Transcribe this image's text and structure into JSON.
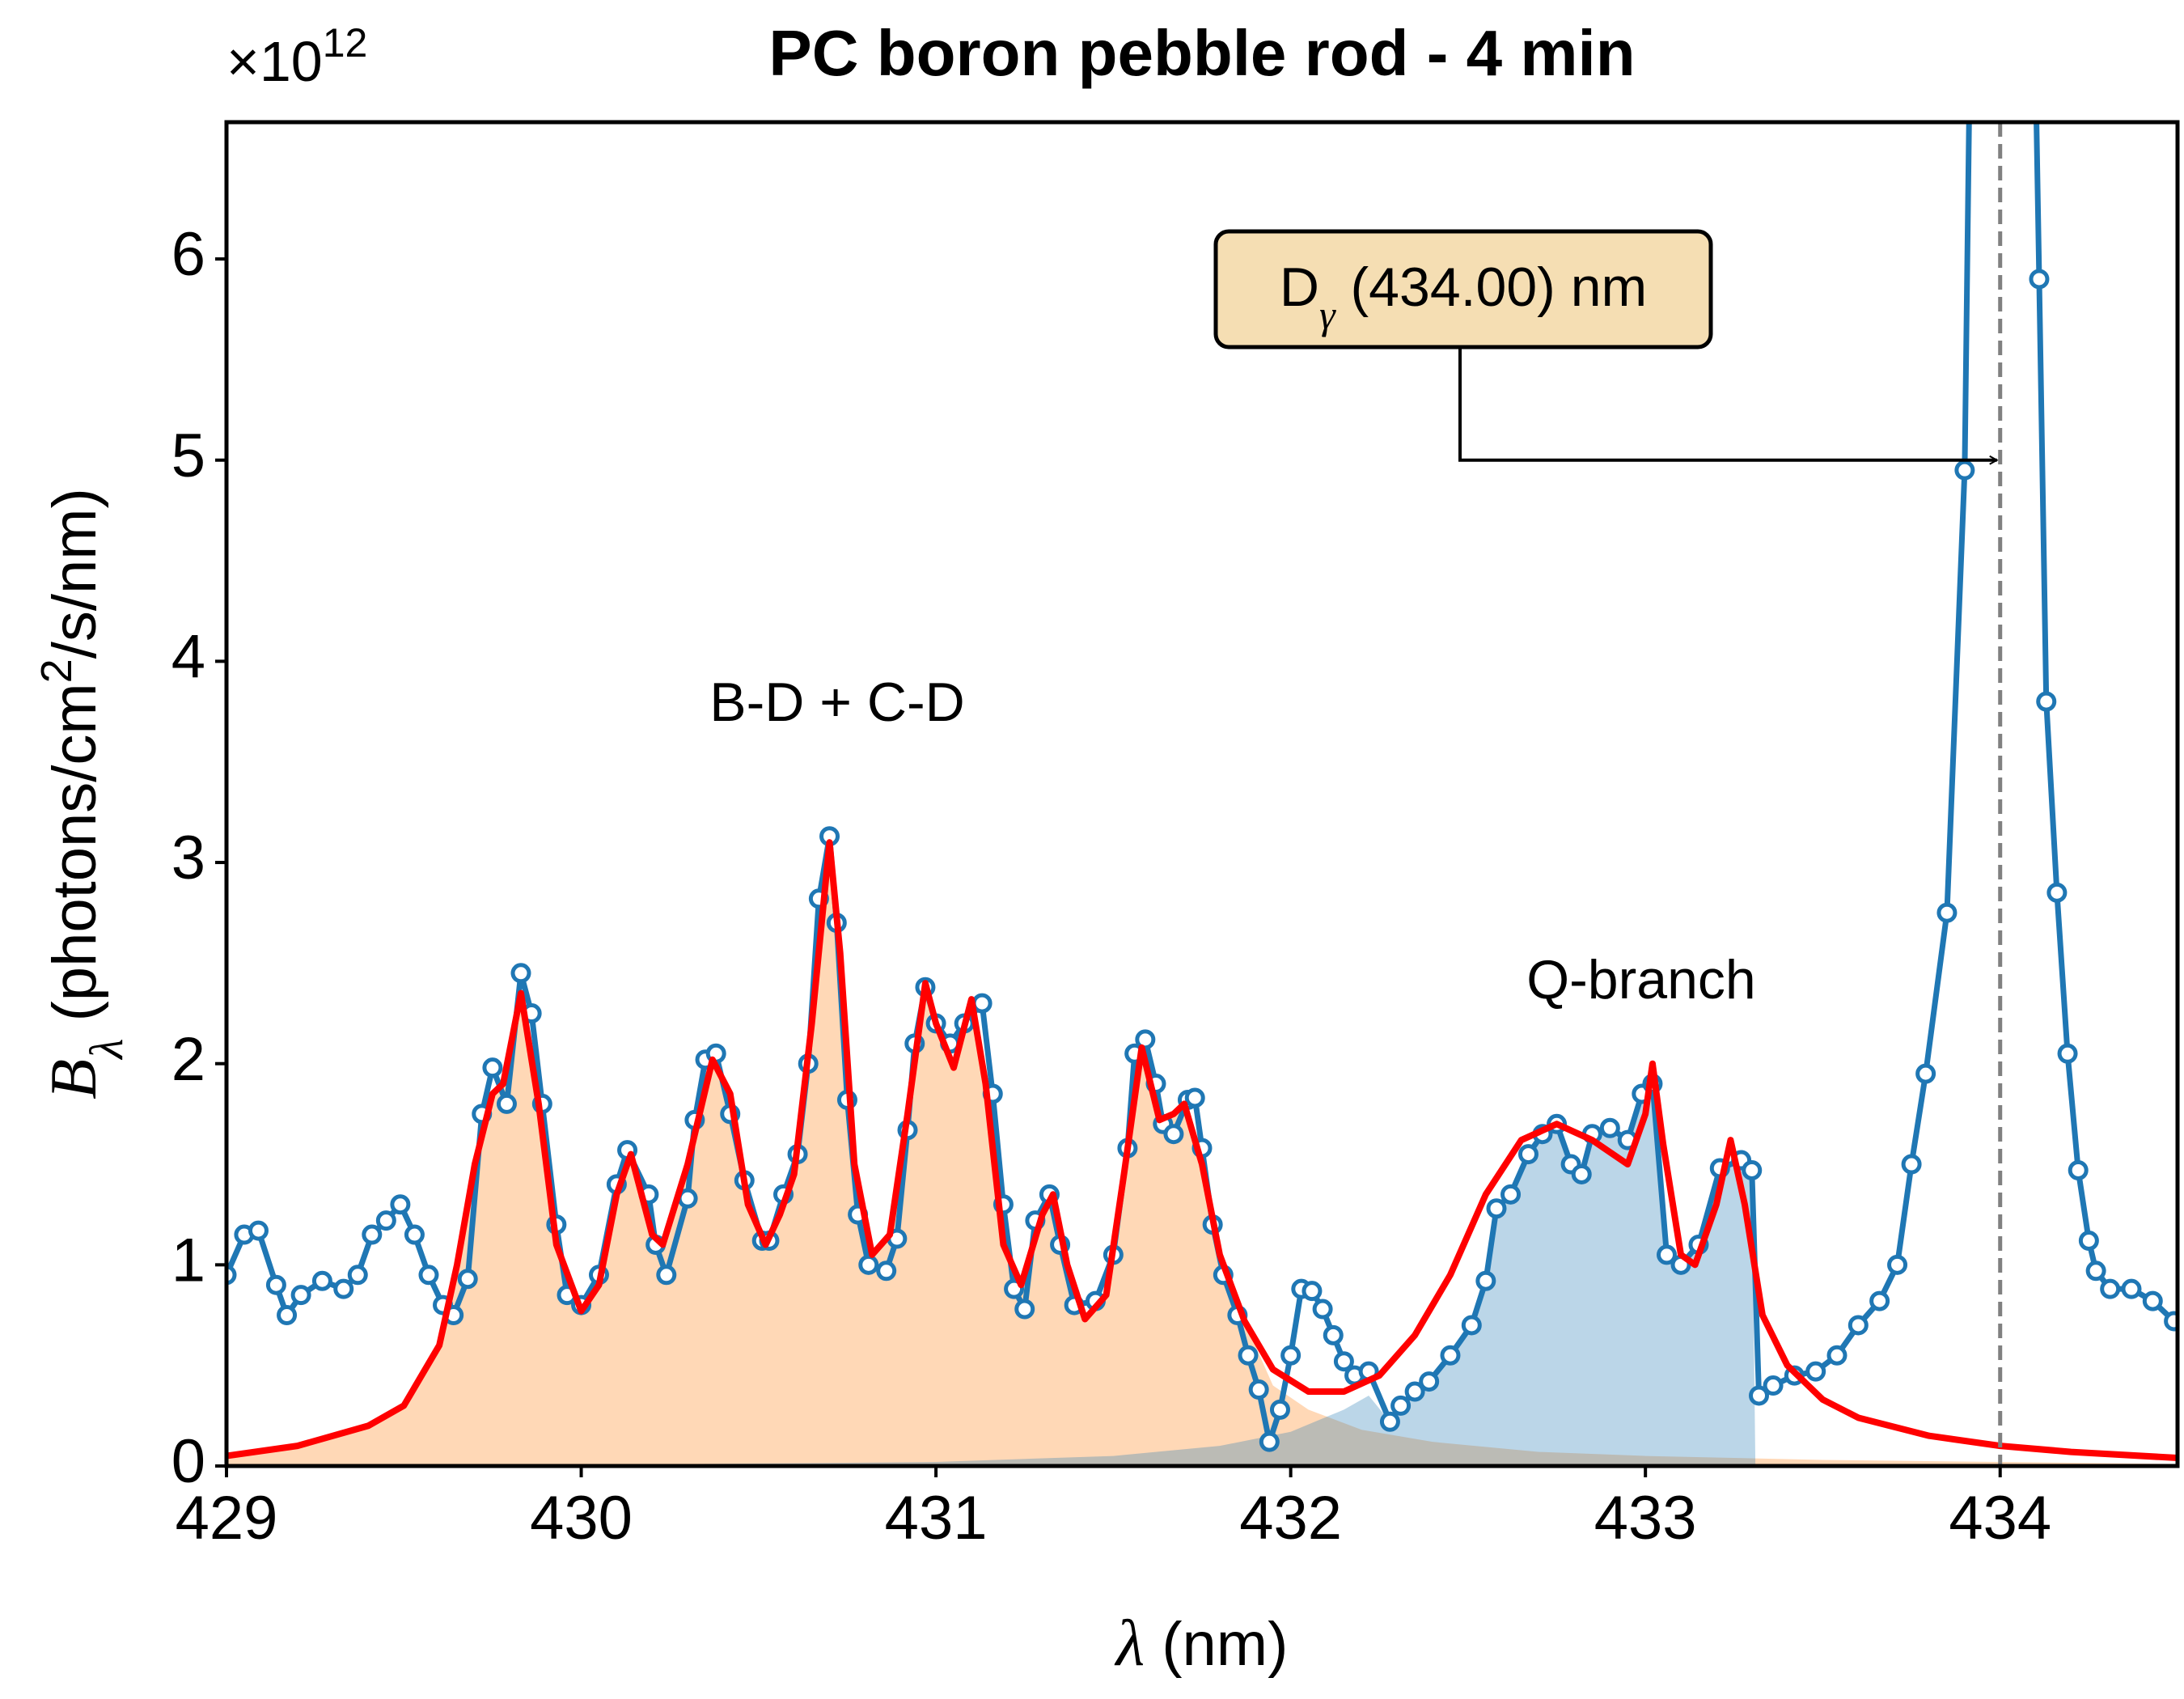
{
  "chart_data": {
    "type": "line",
    "title": "PC boron pebble rod - 4 min",
    "y_offset": {
      "base": "×10",
      "exponent": "12"
    },
    "xlabel": {
      "symbol": "λ",
      "unit": " (nm)"
    },
    "ylabel": {
      "symbol": "B",
      "subscript": "λ",
      "unit_start": " (photons/cm",
      "superscript": "2",
      "unit_end": "/s/nm)"
    },
    "xlim": [
      429,
      434.5
    ],
    "ylim": [
      0,
      6.68
    ],
    "xticks": [
      429,
      430,
      431,
      432,
      433,
      434
    ],
    "yticks": [
      0,
      1,
      2,
      3,
      4,
      5,
      6
    ],
    "texts": [
      "B-D + C-D",
      "Q-branch"
    ],
    "vline": {
      "x": 434,
      "color": "#808080"
    },
    "annotation": {
      "symbol": "D",
      "subscript": "γ",
      "rest": " (434.00) nm",
      "xy": [
        434,
        5
      ],
      "box_color": "#f5deb3"
    },
    "series": [
      {
        "style": "area",
        "color": "#ff7f0e",
        "alpha": 0.3,
        "x": [
          429.0,
          429.2,
          429.4,
          429.5,
          429.6,
          429.65,
          429.7,
          429.75,
          429.78,
          429.83,
          429.88,
          429.93,
          430.0,
          430.05,
          430.1,
          430.14,
          430.2,
          430.23,
          430.3,
          430.37,
          430.42,
          430.47,
          430.52,
          430.56,
          430.6,
          430.65,
          430.7,
          430.73,
          430.77,
          430.82,
          430.87,
          430.92,
          430.97,
          431.0,
          431.05,
          431.1,
          431.14,
          431.19,
          431.24,
          431.3,
          431.33,
          431.37,
          431.42,
          431.48,
          431.53,
          431.58,
          431.63,
          431.67,
          431.7,
          431.75,
          431.8,
          431.87,
          431.95,
          432.05,
          432.2,
          432.4,
          432.7,
          433.0,
          433.5,
          434.0,
          434.5
        ],
        "values": [
          0.05,
          0.1,
          0.2,
          0.3,
          0.6,
          1.0,
          1.5,
          1.85,
          1.9,
          2.35,
          1.8,
          1.1,
          0.77,
          0.9,
          1.35,
          1.55,
          1.15,
          1.1,
          1.5,
          2.02,
          1.85,
          1.3,
          1.1,
          1.25,
          1.45,
          2.2,
          3.1,
          2.55,
          1.5,
          1.05,
          1.15,
          1.75,
          2.4,
          2.2,
          1.98,
          2.32,
          1.9,
          1.1,
          0.9,
          1.25,
          1.35,
          1.0,
          0.73,
          0.85,
          1.45,
          2.08,
          1.72,
          1.75,
          1.8,
          1.5,
          1.05,
          0.72,
          0.4,
          0.28,
          0.18,
          0.12,
          0.07,
          0.05,
          0.03,
          0.02,
          0.01
        ]
      },
      {
        "style": "area",
        "color": "#1f77b4",
        "alpha": 0.3,
        "x": [
          429.0,
          430.0,
          431.0,
          431.5,
          431.8,
          432.0,
          432.15,
          432.22,
          432.28,
          432.31,
          432.35,
          432.39,
          432.45,
          432.51,
          432.55,
          432.58,
          432.62,
          432.67,
          432.71,
          432.75,
          432.79,
          432.82,
          432.85,
          432.9,
          432.95,
          432.99,
          433.02,
          433.06,
          433.1,
          433.15,
          433.21,
          433.27,
          433.3,
          433.31,
          434.5
        ],
        "values": [
          0.0,
          0.005,
          0.02,
          0.05,
          0.1,
          0.17,
          0.28,
          0.35,
          0.22,
          0.3,
          0.37,
          0.42,
          0.55,
          0.7,
          0.92,
          1.28,
          1.35,
          1.55,
          1.65,
          1.7,
          1.5,
          1.45,
          1.65,
          1.68,
          1.62,
          1.85,
          1.9,
          1.05,
          1.0,
          1.1,
          1.48,
          1.52,
          1.47,
          0.0,
          0.0
        ]
      },
      {
        "style": "line-marker",
        "color": "#1f77b4",
        "x": [
          429.0,
          429.05,
          429.09,
          429.14,
          429.17,
          429.21,
          429.27,
          429.33,
          429.37,
          429.41,
          429.45,
          429.49,
          429.53,
          429.57,
          429.61,
          429.64,
          429.68,
          429.72,
          429.75,
          429.79,
          429.83,
          429.86,
          429.89,
          429.93,
          429.96,
          430.0,
          430.05,
          430.1,
          430.13,
          430.19,
          430.21,
          430.24,
          430.3,
          430.32,
          430.35,
          430.38,
          430.42,
          430.46,
          430.51,
          430.53,
          430.57,
          430.61,
          430.64,
          430.67,
          430.7,
          430.72,
          430.75,
          430.78,
          430.81,
          430.86,
          430.89,
          430.92,
          430.94,
          430.97,
          431.0,
          431.04,
          431.08,
          431.13,
          431.16,
          431.19,
          431.22,
          431.25,
          431.28,
          431.32,
          431.35,
          431.39,
          431.45,
          431.5,
          431.54,
          431.56,
          431.59,
          431.62,
          431.64,
          431.67,
          431.71,
          431.73,
          431.75,
          431.78,
          431.81,
          431.85,
          431.88,
          431.91,
          431.94,
          431.97,
          432.0,
          432.03,
          432.06,
          432.09,
          432.12,
          432.15,
          432.18,
          432.22,
          432.28,
          432.31,
          432.35,
          432.39,
          432.45,
          432.51,
          432.55,
          432.58,
          432.62,
          432.67,
          432.71,
          432.75,
          432.79,
          432.82,
          432.85,
          432.9,
          432.95,
          432.99,
          433.02,
          433.06,
          433.1,
          433.15,
          433.21,
          433.27,
          433.3,
          433.32,
          433.36,
          433.42,
          433.48,
          433.54,
          433.6,
          433.66,
          433.71,
          433.75,
          433.79,
          433.85,
          433.9,
          433.95,
          434.05,
          434.11,
          434.13,
          434.16,
          434.19,
          434.22,
          434.25,
          434.27,
          434.31,
          434.37,
          434.43,
          434.49
        ],
        "values": [
          0.95,
          1.15,
          1.17,
          0.9,
          0.75,
          0.85,
          0.92,
          0.88,
          0.95,
          1.15,
          1.22,
          1.3,
          1.15,
          0.95,
          0.8,
          0.75,
          0.93,
          1.75,
          1.98,
          1.8,
          2.45,
          2.25,
          1.8,
          1.2,
          0.85,
          0.8,
          0.95,
          1.4,
          1.57,
          1.35,
          1.1,
          0.95,
          1.33,
          1.72,
          2.02,
          2.05,
          1.75,
          1.42,
          1.12,
          1.12,
          1.35,
          1.55,
          2.0,
          2.82,
          3.13,
          2.7,
          1.82,
          1.25,
          1.0,
          0.97,
          1.13,
          1.67,
          2.1,
          2.38,
          2.2,
          2.1,
          2.2,
          2.3,
          1.85,
          1.3,
          0.88,
          0.78,
          1.22,
          1.35,
          1.1,
          0.8,
          0.82,
          1.05,
          1.58,
          2.05,
          2.12,
          1.9,
          1.7,
          1.65,
          1.82,
          1.83,
          1.58,
          1.2,
          0.95,
          0.75,
          0.55,
          0.38,
          0.12,
          0.28,
          0.55,
          0.88,
          0.87,
          0.78,
          0.65,
          0.52,
          0.45,
          0.47,
          0.22,
          0.3,
          0.37,
          0.42,
          0.55,
          0.7,
          0.92,
          1.28,
          1.35,
          1.55,
          1.65,
          1.7,
          1.5,
          1.45,
          1.65,
          1.68,
          1.62,
          1.85,
          1.9,
          1.05,
          1.0,
          1.1,
          1.48,
          1.52,
          1.47,
          0.35,
          0.4,
          0.45,
          0.47,
          0.55,
          0.7,
          0.82,
          1.0,
          1.5,
          1.95,
          2.75,
          4.95,
          12,
          12,
          5.9,
          3.8,
          2.85,
          2.05,
          1.47,
          1.12,
          0.97,
          0.88,
          0.88,
          0.82,
          0.72
        ]
      },
      {
        "style": "line",
        "color": "#ff0000",
        "x": [
          429.0,
          429.2,
          429.4,
          429.5,
          429.6,
          429.65,
          429.7,
          429.75,
          429.78,
          429.83,
          429.88,
          429.93,
          430.0,
          430.05,
          430.1,
          430.14,
          430.2,
          430.23,
          430.3,
          430.37,
          430.42,
          430.47,
          430.52,
          430.56,
          430.6,
          430.65,
          430.7,
          430.73,
          430.77,
          430.82,
          430.87,
          430.92,
          430.97,
          431.0,
          431.05,
          431.1,
          431.14,
          431.19,
          431.24,
          431.3,
          431.33,
          431.37,
          431.42,
          431.48,
          431.53,
          431.58,
          431.63,
          431.67,
          431.7,
          431.75,
          431.8,
          431.87,
          431.95,
          432.05,
          432.15,
          432.25,
          432.35,
          432.45,
          432.55,
          432.65,
          432.75,
          432.85,
          432.95,
          433.0,
          433.02,
          433.05,
          433.1,
          433.14,
          433.2,
          433.24,
          433.28,
          433.33,
          433.4,
          433.5,
          433.6,
          433.8,
          434.0,
          434.2,
          434.5
        ],
        "values": [
          0.05,
          0.1,
          0.2,
          0.3,
          0.6,
          1.0,
          1.5,
          1.85,
          1.9,
          2.35,
          1.8,
          1.1,
          0.77,
          0.9,
          1.35,
          1.55,
          1.15,
          1.1,
          1.5,
          2.02,
          1.85,
          1.3,
          1.1,
          1.25,
          1.45,
          2.2,
          3.1,
          2.55,
          1.5,
          1.05,
          1.15,
          1.75,
          2.4,
          2.2,
          1.98,
          2.32,
          1.9,
          1.1,
          0.9,
          1.25,
          1.35,
          1.0,
          0.73,
          0.85,
          1.45,
          2.08,
          1.72,
          1.75,
          1.8,
          1.5,
          1.05,
          0.72,
          0.48,
          0.37,
          0.37,
          0.45,
          0.65,
          0.95,
          1.35,
          1.62,
          1.7,
          1.62,
          1.5,
          1.75,
          2.0,
          1.6,
          1.05,
          1.0,
          1.3,
          1.62,
          1.3,
          0.75,
          0.5,
          0.33,
          0.24,
          0.15,
          0.1,
          0.07,
          0.04
        ]
      }
    ]
  }
}
